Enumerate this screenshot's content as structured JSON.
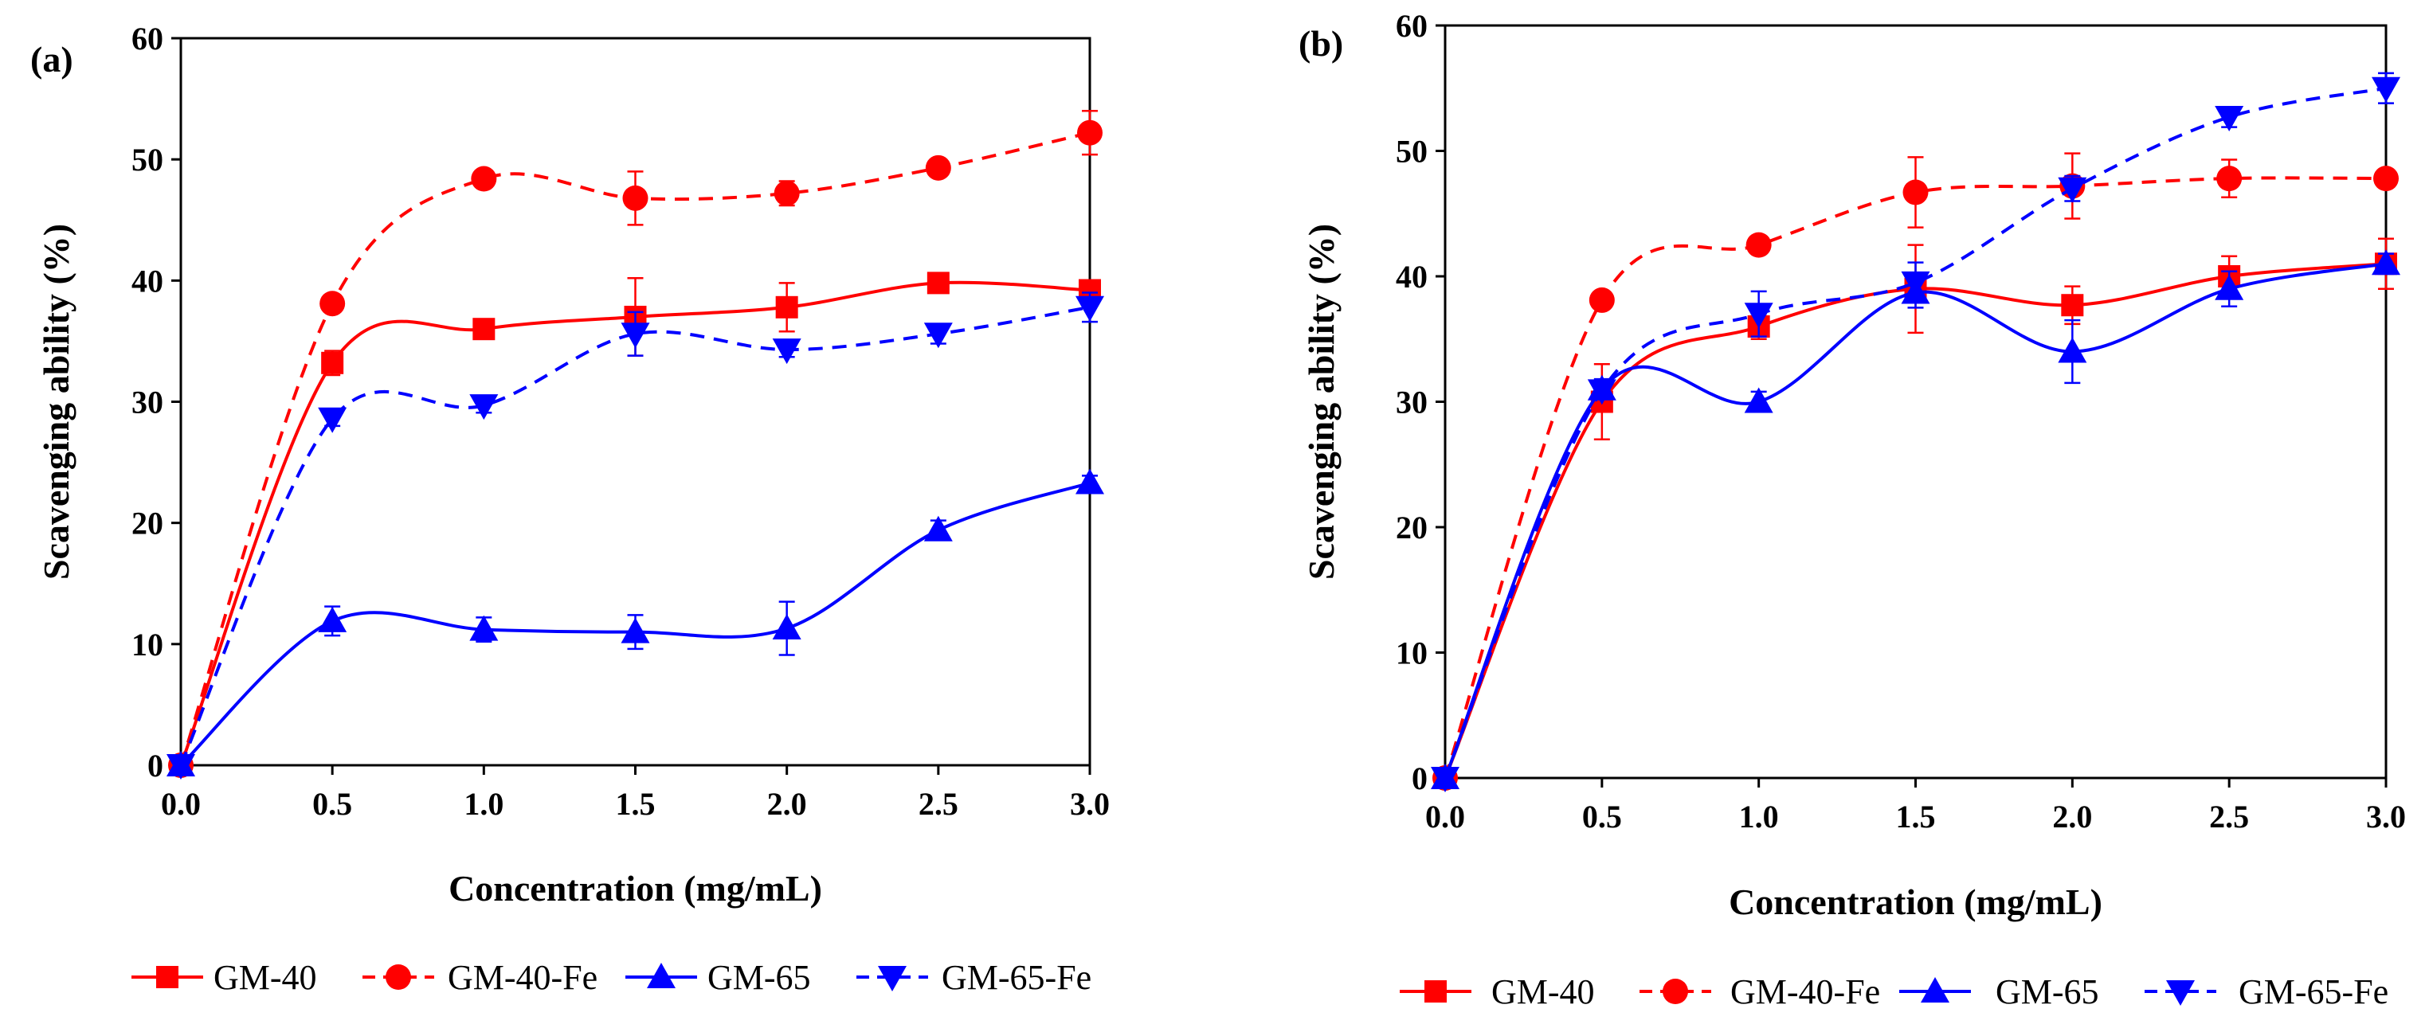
{
  "chart_data": [
    {
      "type": "line",
      "panel_label": "(a)",
      "xlabel": "Concentration (mg/mL)",
      "ylabel": "Scavenging ability (%)",
      "xlim": [
        0,
        3
      ],
      "ylim": [
        0,
        60
      ],
      "x_ticks": [
        "0.0",
        "0.5",
        "1.0",
        "1.5",
        "2.0",
        "2.5",
        "3.0"
      ],
      "y_ticks": [
        "0",
        "10",
        "20",
        "30",
        "40",
        "50",
        "60"
      ],
      "grid": false,
      "legend_position": "bottom",
      "x": [
        0,
        0.5,
        1.0,
        1.5,
        2.0,
        2.5,
        3.0
      ],
      "series": [
        {
          "name": "GM-40",
          "color": "#ff0000",
          "dash": "solid",
          "marker": "square",
          "values": [
            0,
            33.2,
            36.0,
            37.0,
            37.8,
            39.8,
            39.2
          ],
          "errors": [
            0,
            1.0,
            0.5,
            3.2,
            2.0,
            0.5,
            0.8
          ]
        },
        {
          "name": "GM-40-Fe",
          "color": "#ff0000",
          "dash": "dashed",
          "marker": "circle",
          "values": [
            0,
            38.1,
            48.4,
            46.8,
            47.2,
            49.3,
            52.2
          ],
          "errors": [
            0,
            0.4,
            0.5,
            2.2,
            1.0,
            0.4,
            1.8
          ]
        },
        {
          "name": "GM-65",
          "color": "#0000ff",
          "dash": "solid",
          "marker": "triangle-up",
          "values": [
            0,
            11.9,
            11.2,
            11.0,
            11.3,
            19.4,
            23.3
          ],
          "errors": [
            0,
            1.2,
            1.0,
            1.4,
            2.2,
            0.8,
            0.6
          ]
        },
        {
          "name": "GM-65-Fe",
          "color": "#0000ff",
          "dash": "dashed",
          "marker": "triangle-down",
          "values": [
            0,
            28.6,
            29.7,
            35.6,
            34.3,
            35.6,
            37.8
          ],
          "errors": [
            0,
            0.6,
            0.6,
            1.8,
            0.6,
            0.8,
            1.2
          ]
        }
      ]
    },
    {
      "type": "line",
      "panel_label": "(b)",
      "xlabel": "Concentration (mg/mL)",
      "ylabel": "Scavenging ability (%)",
      "xlim": [
        0,
        3
      ],
      "ylim": [
        0,
        60
      ],
      "x_ticks": [
        "0.0",
        "0.5",
        "1.0",
        "1.5",
        "2.0",
        "2.5",
        "3.0"
      ],
      "y_ticks": [
        "0",
        "10",
        "20",
        "30",
        "40",
        "50",
        "60"
      ],
      "grid": false,
      "legend_position": "bottom",
      "x": [
        0,
        0.5,
        1.0,
        1.5,
        2.0,
        2.5,
        3.0
      ],
      "series": [
        {
          "name": "GM-40",
          "color": "#ff0000",
          "dash": "solid",
          "marker": "square",
          "values": [
            0,
            30.0,
            36.0,
            39.0,
            37.7,
            40.0,
            41.0
          ],
          "errors": [
            0,
            3.0,
            1.0,
            3.5,
            1.5,
            1.6,
            2.0
          ]
        },
        {
          "name": "GM-40-Fe",
          "color": "#ff0000",
          "dash": "dashed",
          "marker": "circle",
          "values": [
            0,
            38.1,
            42.5,
            46.7,
            47.2,
            47.8,
            47.8
          ],
          "errors": [
            0,
            0.4,
            0.6,
            2.8,
            2.6,
            1.5,
            0.5
          ]
        },
        {
          "name": "GM-65",
          "color": "#0000ff",
          "dash": "solid",
          "marker": "triangle-up",
          "values": [
            0,
            31.0,
            30.0,
            38.7,
            34.0,
            39.0,
            41.0
          ],
          "errors": [
            0,
            0.8,
            0.8,
            1.2,
            2.5,
            1.4,
            0.8
          ]
        },
        {
          "name": "GM-65-Fe",
          "color": "#0000ff",
          "dash": "dashed",
          "marker": "triangle-down",
          "values": [
            0,
            30.9,
            37.0,
            39.5,
            47.0,
            52.7,
            55.0
          ],
          "errors": [
            0,
            0.6,
            1.8,
            1.6,
            1.0,
            0.8,
            1.2
          ]
        }
      ]
    }
  ]
}
